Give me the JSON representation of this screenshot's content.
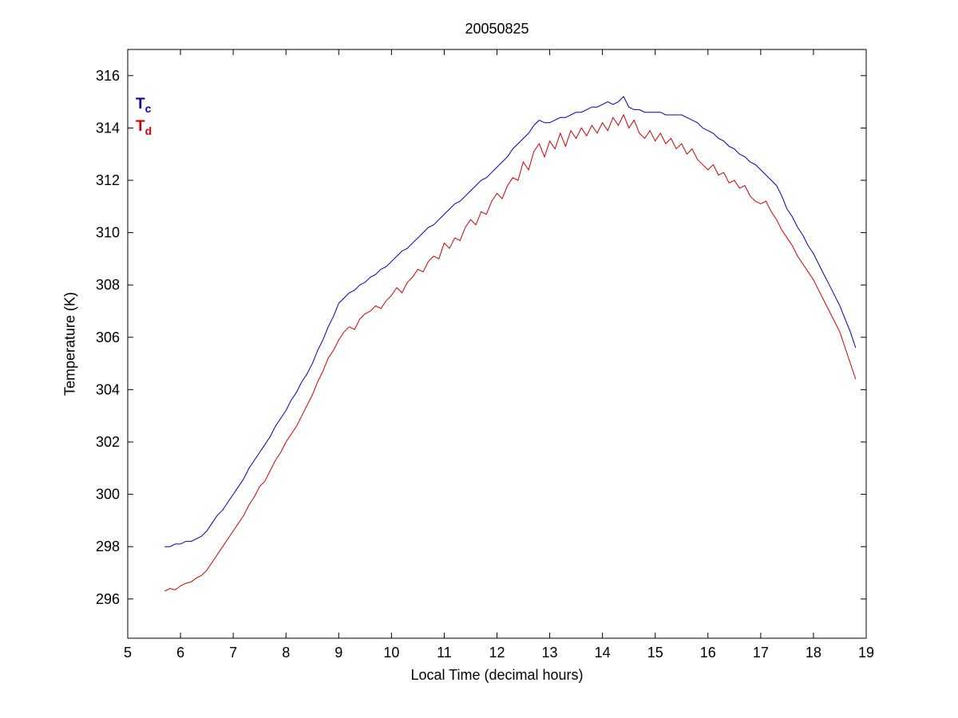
{
  "chart_data": {
    "type": "line",
    "title": "20050825",
    "xlabel": "Local Time (decimal hours)",
    "ylabel": "Temperature (K)",
    "xlim": [
      5,
      19
    ],
    "ylim": [
      294.5,
      317
    ],
    "xticks": [
      5,
      6,
      7,
      8,
      9,
      10,
      11,
      12,
      13,
      14,
      15,
      16,
      17,
      18,
      19
    ],
    "yticks": [
      296,
      298,
      300,
      302,
      304,
      306,
      308,
      310,
      312,
      314,
      316
    ],
    "grid": false,
    "legend_position": "top-left-inside",
    "x": [
      5.7,
      5.8,
      5.9,
      6.0,
      6.1,
      6.2,
      6.3,
      6.4,
      6.5,
      6.6,
      6.7,
      6.8,
      6.9,
      7.0,
      7.1,
      7.2,
      7.3,
      7.4,
      7.5,
      7.6,
      7.7,
      7.8,
      7.9,
      8.0,
      8.1,
      8.2,
      8.3,
      8.4,
      8.5,
      8.6,
      8.7,
      8.8,
      8.9,
      9.0,
      9.1,
      9.2,
      9.3,
      9.4,
      9.5,
      9.6,
      9.7,
      9.8,
      9.9,
      10.0,
      10.1,
      10.2,
      10.3,
      10.4,
      10.5,
      10.6,
      10.7,
      10.8,
      10.9,
      11.0,
      11.1,
      11.2,
      11.3,
      11.4,
      11.5,
      11.6,
      11.7,
      11.8,
      11.9,
      12.0,
      12.1,
      12.2,
      12.3,
      12.4,
      12.5,
      12.6,
      12.7,
      12.8,
      12.9,
      13.0,
      13.1,
      13.2,
      13.3,
      13.4,
      13.5,
      13.6,
      13.7,
      13.8,
      13.9,
      14.0,
      14.1,
      14.2,
      14.3,
      14.4,
      14.5,
      14.6,
      14.7,
      14.8,
      14.9,
      15.0,
      15.1,
      15.2,
      15.3,
      15.4,
      15.5,
      15.6,
      15.7,
      15.8,
      15.9,
      16.0,
      16.1,
      16.2,
      16.3,
      16.4,
      16.5,
      16.6,
      16.7,
      16.8,
      16.9,
      17.0,
      17.1,
      17.2,
      17.3,
      17.4,
      17.5,
      17.6,
      17.7,
      17.8,
      17.9,
      18.0,
      18.1,
      18.2,
      18.3,
      18.4,
      18.5,
      18.6,
      18.7,
      18.8
    ],
    "series": [
      {
        "name": "Tc",
        "label": "T",
        "label_sub": "c",
        "color": "#0000b4",
        "values": [
          298.0,
          298.0,
          298.1,
          298.1,
          298.2,
          298.2,
          298.3,
          298.4,
          298.6,
          298.9,
          299.2,
          299.4,
          299.7,
          300.0,
          300.3,
          300.6,
          301.0,
          301.3,
          301.6,
          301.9,
          302.2,
          302.6,
          302.9,
          303.2,
          303.6,
          303.9,
          304.3,
          304.6,
          305.0,
          305.5,
          305.9,
          306.4,
          306.8,
          307.3,
          307.5,
          307.7,
          307.8,
          308.0,
          308.1,
          308.3,
          308.4,
          308.6,
          308.7,
          308.9,
          309.1,
          309.3,
          309.4,
          309.6,
          309.8,
          310.0,
          310.2,
          310.3,
          310.5,
          310.7,
          310.9,
          311.1,
          311.2,
          311.4,
          311.6,
          311.8,
          312.0,
          312.1,
          312.3,
          312.5,
          312.7,
          312.9,
          313.2,
          313.4,
          313.6,
          313.8,
          314.1,
          314.3,
          314.2,
          314.2,
          314.3,
          314.4,
          314.4,
          314.5,
          314.6,
          314.6,
          314.7,
          314.8,
          314.8,
          314.9,
          315.0,
          314.9,
          315.0,
          315.2,
          314.8,
          314.7,
          314.7,
          314.6,
          314.6,
          314.6,
          314.6,
          314.5,
          314.5,
          314.5,
          314.5,
          314.4,
          314.3,
          314.2,
          314.0,
          313.9,
          313.8,
          313.6,
          313.5,
          313.3,
          313.2,
          313.0,
          312.9,
          312.7,
          312.6,
          312.4,
          312.2,
          312.0,
          311.8,
          311.4,
          310.9,
          310.6,
          310.2,
          309.9,
          309.5,
          309.2,
          308.8,
          308.4,
          308.0,
          307.6,
          307.2,
          306.7,
          306.2,
          305.6
        ]
      },
      {
        "name": "Td",
        "label": "T",
        "label_sub": "d",
        "color": "#cc0000",
        "values": [
          296.3,
          296.4,
          296.35,
          296.5,
          296.6,
          296.65,
          296.8,
          296.9,
          297.1,
          297.4,
          297.7,
          298.0,
          298.3,
          298.6,
          298.9,
          299.2,
          299.6,
          299.9,
          300.3,
          300.5,
          300.9,
          301.3,
          301.6,
          302.0,
          302.3,
          302.6,
          303.0,
          303.4,
          303.8,
          304.3,
          304.7,
          305.2,
          305.5,
          305.9,
          306.2,
          306.4,
          306.3,
          306.7,
          306.9,
          307.0,
          307.2,
          307.1,
          307.4,
          307.6,
          307.9,
          307.7,
          308.1,
          308.3,
          308.6,
          308.5,
          308.9,
          309.1,
          309.0,
          309.6,
          309.4,
          309.8,
          309.7,
          310.2,
          310.5,
          310.3,
          310.8,
          310.7,
          311.2,
          311.5,
          311.3,
          311.8,
          312.1,
          312.0,
          312.7,
          312.4,
          313.1,
          313.4,
          312.9,
          313.5,
          313.2,
          313.8,
          313.3,
          313.9,
          313.6,
          314.0,
          313.7,
          314.1,
          313.8,
          314.2,
          313.9,
          314.4,
          314.1,
          314.5,
          314.0,
          314.3,
          313.8,
          313.6,
          313.9,
          313.5,
          313.8,
          313.4,
          313.6,
          313.2,
          313.4,
          313.0,
          313.2,
          312.8,
          312.6,
          312.4,
          312.6,
          312.2,
          312.3,
          311.9,
          312.0,
          311.7,
          311.8,
          311.4,
          311.2,
          311.1,
          311.2,
          310.8,
          310.5,
          310.1,
          309.8,
          309.5,
          309.1,
          308.8,
          308.5,
          308.2,
          307.8,
          307.4,
          307.0,
          306.6,
          306.2,
          305.6,
          305.0,
          304.4
        ]
      }
    ]
  }
}
